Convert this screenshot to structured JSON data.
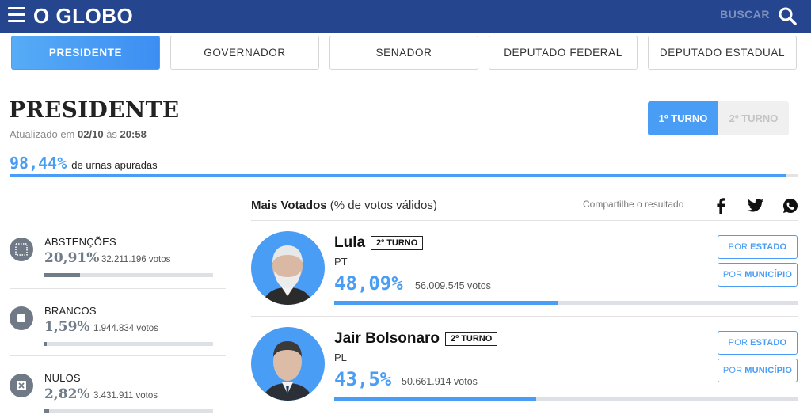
{
  "header": {
    "logo": "O GLOBO",
    "search_label": "BUSCAR"
  },
  "tabs": [
    {
      "label": "PRESIDENTE",
      "active": true
    },
    {
      "label": "GOVERNADOR",
      "active": false
    },
    {
      "label": "SENADOR",
      "active": false
    },
    {
      "label": "DEPUTADO FEDERAL",
      "active": false
    },
    {
      "label": "DEPUTADO ESTADUAL",
      "active": false
    }
  ],
  "page": {
    "title": "PRESIDENTE",
    "updated_prefix": "Atualizado em",
    "updated_date": "02/10",
    "updated_sep": "às",
    "updated_time": "20:58"
  },
  "turno": {
    "first": "1º TURNO",
    "second": "2º TURNO"
  },
  "urnas": {
    "pct": "98,44%",
    "label": "de urnas apuradas",
    "fraction": 0.9844
  },
  "stats": [
    {
      "label": "ABSTENÇÕES",
      "pct": "20,91%",
      "votes": "32.211.196 votos",
      "fraction": 0.2091,
      "icon": "grid-square-icon"
    },
    {
      "label": "BRANCOS",
      "pct": "1,59%",
      "votes": "1.944.834 votos",
      "fraction": 0.0159,
      "icon": "square-icon"
    },
    {
      "label": "NULOS",
      "pct": "2,82%",
      "votes": "3.431.911 votos",
      "fraction": 0.0282,
      "icon": "x-box-icon"
    }
  ],
  "candidates_header": {
    "bold": "Mais Votados",
    "rest": "(% de votos válidos)",
    "share_label": "Compartilhe o resultado"
  },
  "candidates": [
    {
      "name": "Lula",
      "badge": "2º TURNO",
      "party": "PT",
      "pct": "48,09%",
      "votes": "56.009.545 votos",
      "fraction": 0.4809,
      "btn_estado_pre": "POR",
      "btn_estado": "ESTADO",
      "btn_municipio_pre": "POR",
      "btn_municipio": "MUNICÍPIO"
    },
    {
      "name": "Jair Bolsonaro",
      "badge": "2º TURNO",
      "party": "PL",
      "pct": "43,5%",
      "votes": "50.661.914 votos",
      "fraction": 0.435,
      "btn_estado_pre": "POR",
      "btn_estado": "ESTADO",
      "btn_municipio_pre": "POR",
      "btn_municipio": "MUNICÍPIO"
    }
  ],
  "colors": {
    "header_bg": "#25468f",
    "accent": "#4a9df5",
    "stat_gray": "#707c88"
  }
}
